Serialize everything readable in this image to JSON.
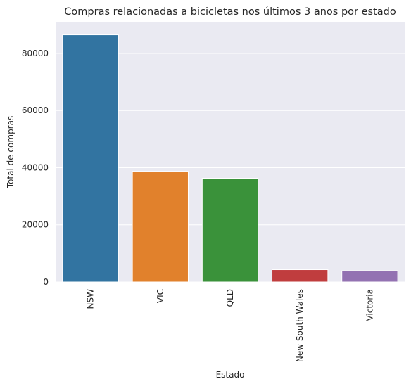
{
  "chart_data": {
    "type": "bar",
    "title": "Compras relacionadas a bicicletas nos últimos 3 anos por estado",
    "xlabel": "Estado",
    "ylabel": "Total de compras",
    "categories": [
      "NSW",
      "VIC",
      "QLD",
      "New South Wales",
      "Victoria"
    ],
    "values": [
      86500,
      38700,
      36300,
      4300,
      3900
    ],
    "colors": [
      "#3274a1",
      "#e1812c",
      "#3a923a",
      "#c03d3e",
      "#9372b2"
    ],
    "ylim": [
      0,
      90825
    ],
    "yticks": [
      0,
      20000,
      40000,
      60000,
      80000
    ],
    "grid": true,
    "plot_background": "#eaeaf2"
  }
}
